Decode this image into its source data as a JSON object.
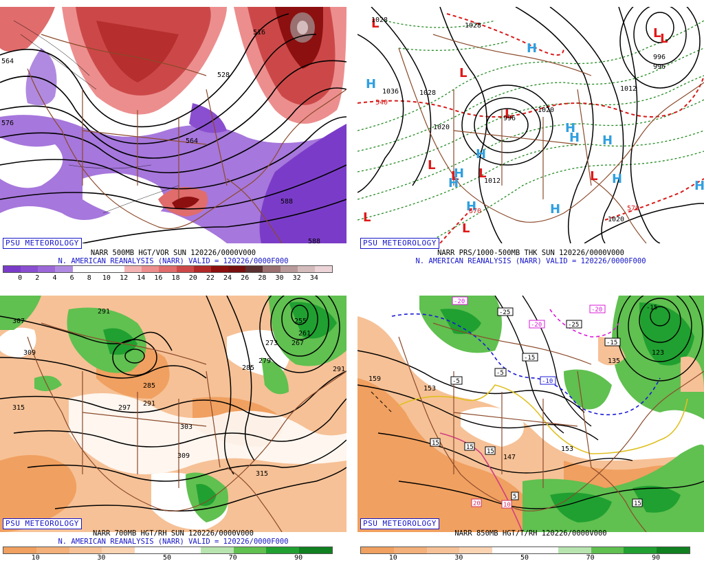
{
  "badge_label": "PSU METEOROLOGY",
  "panels": [
    {
      "title": "NARR 500MB HGT/VOR SUN 120226/0000V000",
      "subtitle": "N. AMERICAN REANALYSIS (NARR) VALID = 120226/0000F000",
      "colorbar": {
        "colors": [
          "#7a3cc8",
          "#8a4fd0",
          "#9c68d8",
          "#b08ae0",
          "#ffffff",
          "#ffffff",
          "#ffffff",
          "#f3b3b3",
          "#ec8e8e",
          "#e06c6c",
          "#cc4848",
          "#b02828",
          "#8c1010",
          "#781010",
          "#5a3030",
          "#9a7070",
          "#b89a9a",
          "#d4bcbc",
          "#ecd4d8"
        ],
        "tick_labels": [
          "0",
          "2",
          "4",
          "6",
          "8",
          "10",
          "12",
          "14",
          "16",
          "18",
          "20",
          "22",
          "24",
          "26",
          "28",
          "30",
          "32",
          "34"
        ]
      },
      "contour_labels": [
        "564",
        "576",
        "516",
        "528",
        "564",
        "588",
        "588"
      ]
    },
    {
      "title": "NARR PRS/1000-500MB THK SUN 120226/0000V000",
      "subtitle": "N. AMERICAN REANALYSIS (NARR) VALID = 120226/0000F000",
      "contour_labels": [
        "1028",
        "1028",
        "1036",
        "1028",
        "1020",
        "996",
        "1020",
        "1012",
        "996",
        "996",
        "1012",
        "1020",
        "540",
        "570",
        "570"
      ],
      "pressure_centers": [
        {
          "type": "L"
        },
        {
          "type": "L"
        },
        {
          "type": "L"
        },
        {
          "type": "L"
        },
        {
          "type": "L"
        },
        {
          "type": "L"
        },
        {
          "type": "L"
        },
        {
          "type": "L"
        },
        {
          "type": "L"
        },
        {
          "type": "L"
        },
        {
          "type": "L"
        },
        {
          "type": "H"
        },
        {
          "type": "H"
        },
        {
          "type": "H"
        },
        {
          "type": "H"
        },
        {
          "type": "H"
        },
        {
          "type": "H"
        },
        {
          "type": "H"
        },
        {
          "type": "H"
        },
        {
          "type": "H"
        },
        {
          "type": "H"
        },
        {
          "type": "H"
        },
        {
          "type": "H"
        }
      ]
    },
    {
      "title": "NARR 700MB HGT/RH SUN 120226/0000V000",
      "subtitle": "N. AMERICAN REANALYSIS (NARR) VALID = 120226/0000F000",
      "colorbar": {
        "colors": [
          "#f0a060",
          "#f3b07a",
          "#f6c196",
          "#f9d3b2",
          "#ffffff",
          "#ffffff",
          "#b8e4b0",
          "#60c050",
          "#20a030",
          "#108020"
        ],
        "tick_labels": [
          "10",
          "30",
          "50",
          "70",
          "90"
        ]
      },
      "contour_labels": [
        "307",
        "309",
        "315",
        "291",
        "285",
        "291",
        "297",
        "303",
        "309",
        "315",
        "255",
        "261",
        "267",
        "273",
        "279",
        "285",
        "291"
      ]
    },
    {
      "title": "NARR 850MB HGT/T/RH 120226/0000V000",
      "subtitle": "",
      "colorbar": {
        "colors": [
          "#f0a060",
          "#f3b07a",
          "#f6c196",
          "#f9d3b2",
          "#ffffff",
          "#ffffff",
          "#b8e4b0",
          "#60c050",
          "#20a030",
          "#108020"
        ],
        "tick_labels": [
          "10",
          "30",
          "50",
          "70",
          "90"
        ]
      },
      "contour_labels": [
        "159",
        "153",
        "147",
        "153",
        "135",
        "123",
        "15",
        "15",
        "15",
        "15",
        "5",
        "20",
        "10",
        "-5",
        "-10",
        "-15",
        "-25",
        "-25",
        "-20",
        "-20",
        "-20",
        "-15",
        "-5",
        "-15"
      ]
    }
  ]
}
